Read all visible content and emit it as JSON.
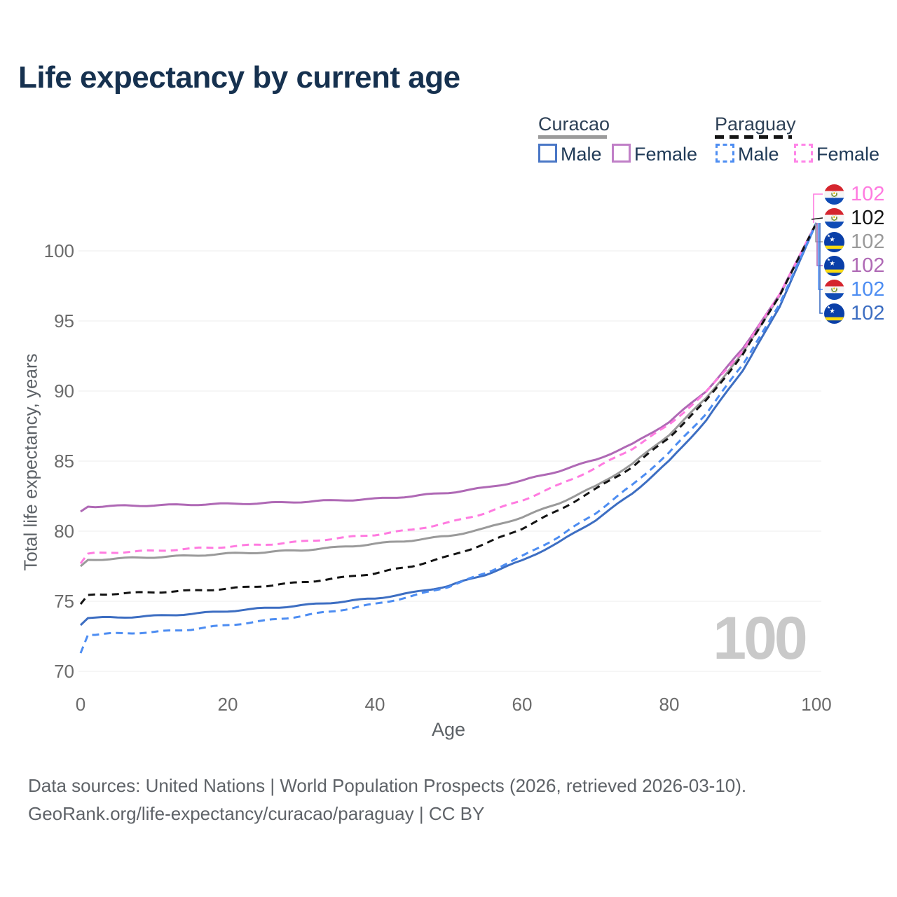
{
  "title": "Life expectancy by current age",
  "legend": {
    "curacao": {
      "label": "Curacao",
      "male": "Male",
      "female": "Female"
    },
    "paraguay": {
      "label": "Paraguay",
      "male": "Male",
      "female": "Female"
    }
  },
  "watermark_age": "100",
  "footer": {
    "line1": "Data sources: United Nations | World Population Prospects (2026, retrieved 2026-03-10).",
    "line2": "GeoRank.org/life-expectancy/curacao/paraguay | CC BY"
  },
  "chart_data": {
    "type": "line",
    "title": "Life expectancy by current age",
    "xlabel": "Age",
    "ylabel": "Total life expectancy, years",
    "xlim": [
      0,
      100
    ],
    "ylim": [
      70,
      103
    ],
    "xticks": [
      "0",
      "20",
      "40",
      "60",
      "80",
      "100"
    ],
    "yticks": [
      "70",
      "75",
      "80",
      "85",
      "90",
      "95",
      "100"
    ],
    "grid": "horizontal",
    "legend_position": "top-right",
    "ages": [
      0,
      1,
      5,
      10,
      15,
      20,
      25,
      30,
      35,
      40,
      45,
      50,
      55,
      60,
      65,
      70,
      75,
      80,
      85,
      90,
      95,
      100
    ],
    "series": [
      {
        "name": "Paraguay Female",
        "country": "Paraguay",
        "sex": "Female",
        "style": "dashed",
        "color": "#FF7BE0",
        "flag": "paraguay",
        "end_label": "102",
        "values": [
          77.7,
          78.4,
          78.5,
          78.6,
          78.75,
          78.9,
          79.05,
          79.25,
          79.5,
          79.75,
          80.1,
          80.6,
          81.3,
          82.2,
          83.3,
          84.5,
          85.9,
          87.6,
          89.9,
          92.9,
          96.9,
          102
        ]
      },
      {
        "name": "Paraguay",
        "country": "Paraguay",
        "sex": "Both",
        "style": "dashed",
        "color": "#141414",
        "flag": "paraguay",
        "end_label": "102",
        "values": [
          74.8,
          75.45,
          75.55,
          75.65,
          75.75,
          75.9,
          76.1,
          76.35,
          76.65,
          77.0,
          77.5,
          78.2,
          79.1,
          80.2,
          81.5,
          83.0,
          84.6,
          86.7,
          89.3,
          92.6,
          96.8,
          102
        ]
      },
      {
        "name": "Curacao",
        "country": "Curacao",
        "sex": "Both",
        "style": "solid",
        "color": "#9A9A9A",
        "flag": "curacao",
        "end_label": "102",
        "values": [
          77.5,
          77.95,
          78.05,
          78.15,
          78.25,
          78.4,
          78.5,
          78.65,
          78.85,
          79.1,
          79.35,
          79.65,
          80.2,
          81.0,
          82.0,
          83.2,
          84.8,
          86.9,
          89.5,
          92.7,
          96.8,
          102
        ]
      },
      {
        "name": "Curacao Female",
        "country": "Curacao",
        "sex": "Female",
        "style": "solid",
        "color": "#AF69B5",
        "flag": "curacao",
        "end_label": "102",
        "values": [
          81.4,
          81.75,
          81.8,
          81.85,
          81.9,
          81.95,
          82.0,
          82.1,
          82.2,
          82.3,
          82.5,
          82.75,
          83.1,
          83.6,
          84.3,
          85.1,
          86.2,
          87.8,
          90.0,
          93.0,
          96.9,
          102
        ]
      },
      {
        "name": "Paraguay Male",
        "country": "Paraguay",
        "sex": "Male",
        "style": "dashed",
        "color": "#4D8DF2",
        "flag": "paraguay",
        "end_label": "102",
        "values": [
          71.3,
          72.6,
          72.7,
          72.8,
          73.0,
          73.3,
          73.6,
          73.95,
          74.35,
          74.8,
          75.35,
          76.05,
          77.0,
          78.2,
          79.6,
          81.3,
          83.3,
          85.6,
          88.4,
          91.9,
          96.2,
          102
        ]
      },
      {
        "name": "Curacao Male",
        "country": "Curacao",
        "sex": "Male",
        "style": "solid",
        "color": "#3D6EC2",
        "flag": "curacao",
        "end_label": "102",
        "values": [
          73.3,
          73.8,
          73.85,
          73.95,
          74.1,
          74.3,
          74.5,
          74.7,
          74.95,
          75.2,
          75.6,
          76.1,
          76.9,
          77.9,
          79.2,
          80.8,
          82.7,
          85.0,
          87.9,
          91.5,
          96.0,
          102
        ]
      }
    ]
  }
}
